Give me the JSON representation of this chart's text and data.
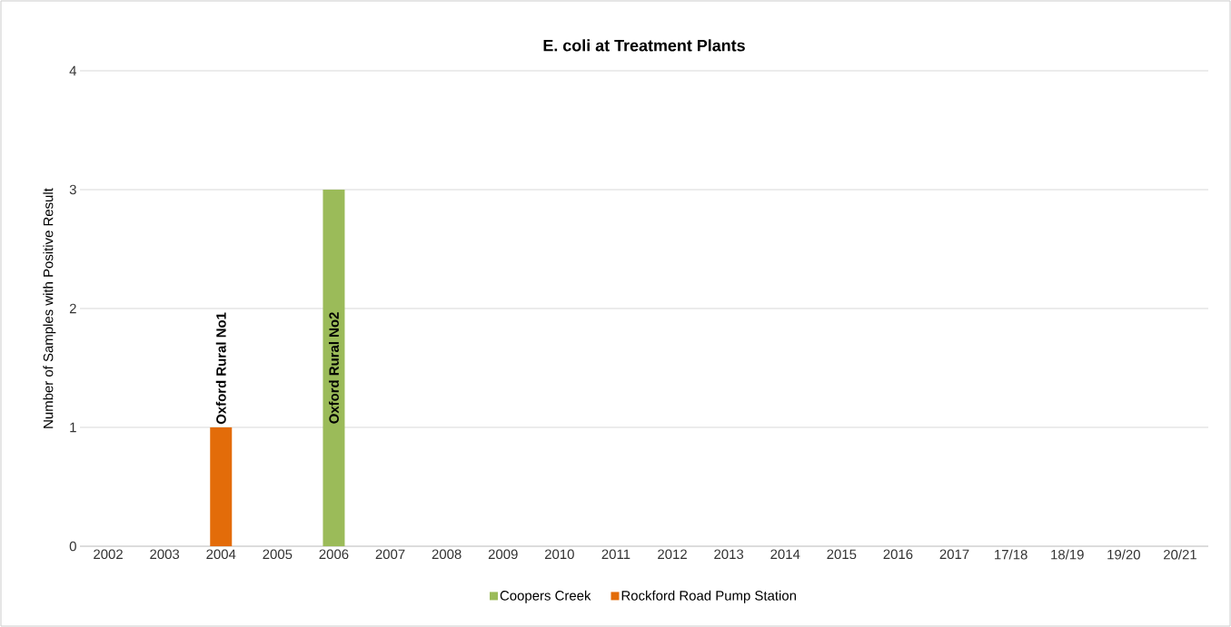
{
  "chart_data": {
    "type": "bar",
    "stacked": true,
    "title": "E. coli at Treatment Plants",
    "ylabel": "Number of Samples with Positive Result",
    "categories": [
      "2002",
      "2003",
      "2004",
      "2005",
      "2006",
      "2007",
      "2008",
      "2009",
      "2010",
      "2011",
      "2012",
      "2013",
      "2014",
      "2015",
      "2016",
      "2017",
      "17/18",
      "18/19",
      "19/20",
      "20/21"
    ],
    "series": [
      {
        "name": "Coopers Creek",
        "color": "#9bbb59",
        "values": [
          0,
          0,
          0,
          0,
          3,
          0,
          0,
          0,
          0,
          0,
          0,
          0,
          0,
          0,
          0,
          0,
          0,
          0,
          0,
          0
        ]
      },
      {
        "name": "Rockford Road Pump Station",
        "color": "#e36c09",
        "values": [
          0,
          0,
          1,
          0,
          0,
          0,
          0,
          0,
          0,
          0,
          0,
          0,
          0,
          0,
          0,
          0,
          0,
          0,
          0,
          0
        ]
      }
    ],
    "annotations": [
      "Oxford Rural No1",
      "Oxford Rural No2"
    ],
    "ylim": [
      0,
      4
    ],
    "yticks": [
      0,
      1,
      2,
      3,
      4
    ],
    "grid": "y",
    "legend": "bottom"
  }
}
